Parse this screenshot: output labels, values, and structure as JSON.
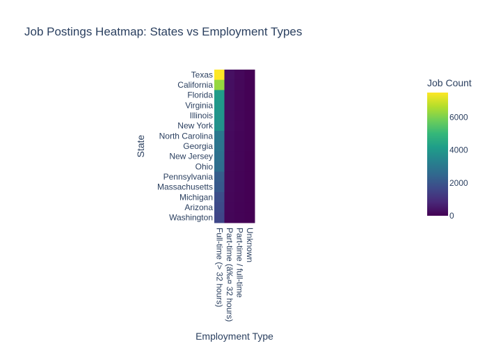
{
  "chart_data": {
    "type": "heatmap",
    "title": "Job Postings Heatmap: States vs Employment Types",
    "xlabel": "Employment Type",
    "ylabel": "State",
    "x_categories": [
      "Full-time (> 32 hours)",
      "Part-time (â‰¤ 32 hours)",
      "Part-time / full-time",
      "Unknown"
    ],
    "y_categories": [
      "Texas",
      "California",
      "Florida",
      "Virginia",
      "Illinois",
      "New York",
      "North Carolina",
      "Georgia",
      "New Jersey",
      "Ohio",
      "Pennsylvania",
      "Massachusetts",
      "Michigan",
      "Arizona",
      "Washington"
    ],
    "z": [
      [
        7500,
        320,
        160,
        20
      ],
      [
        6300,
        300,
        150,
        20
      ],
      [
        4100,
        260,
        120,
        15
      ],
      [
        4000,
        250,
        115,
        15
      ],
      [
        3900,
        240,
        110,
        15
      ],
      [
        3800,
        240,
        105,
        15
      ],
      [
        3000,
        200,
        95,
        12
      ],
      [
        2900,
        190,
        90,
        12
      ],
      [
        2800,
        180,
        85,
        10
      ],
      [
        2700,
        170,
        80,
        10
      ],
      [
        2200,
        150,
        70,
        10
      ],
      [
        2100,
        140,
        65,
        10
      ],
      [
        1800,
        120,
        55,
        8
      ],
      [
        1700,
        110,
        50,
        8
      ],
      [
        1600,
        100,
        45,
        8
      ]
    ],
    "colorscale": "Viridis",
    "zmin": 0,
    "zmax": 7500,
    "colorbar": {
      "title": "Job Count",
      "tickvals": [
        0,
        2000,
        4000,
        6000
      ],
      "ticktext": [
        "0",
        "2000",
        "4000",
        "6000"
      ]
    }
  }
}
